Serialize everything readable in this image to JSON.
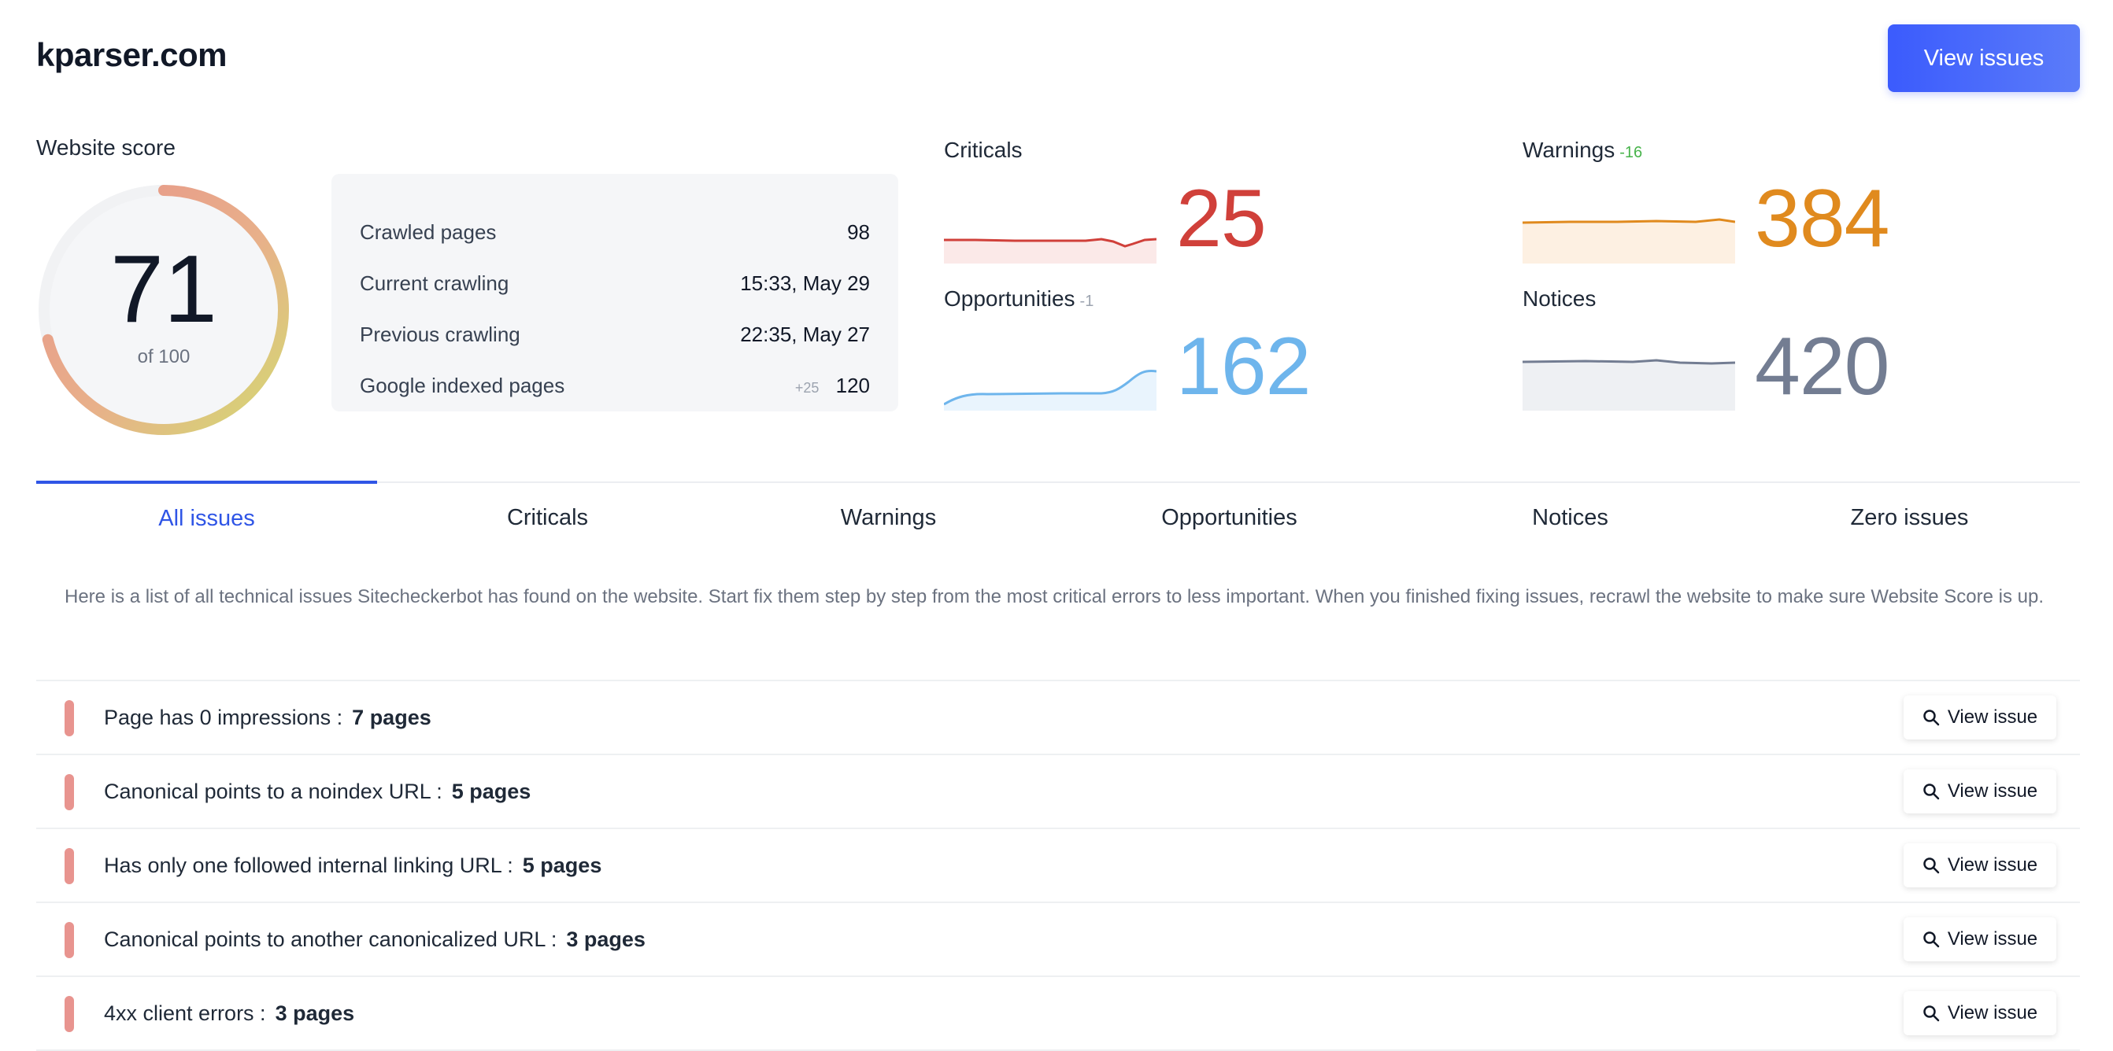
{
  "header": {
    "site": "kparser.com",
    "view_issues_label": "View issues"
  },
  "score": {
    "label": "Website score",
    "value": "71",
    "of": "of 100",
    "fraction": 0.71
  },
  "crawl_info": [
    {
      "label": "Crawled pages",
      "value": "98",
      "delta": ""
    },
    {
      "label": "Current crawling",
      "value": "15:33, May 29",
      "delta": ""
    },
    {
      "label": "Previous crawling",
      "value": "22:35, May 27",
      "delta": ""
    },
    {
      "label": "Google indexed pages",
      "value": "120",
      "delta": "+25"
    }
  ],
  "metrics": {
    "criticals": {
      "title": "Criticals",
      "delta": "",
      "value": "25",
      "color": "#d0403a"
    },
    "warnings": {
      "title": "Warnings",
      "delta": "-16",
      "value": "384",
      "color": "#e08a1e"
    },
    "opportunities": {
      "title": "Opportunities",
      "delta": "-1",
      "value": "162",
      "color": "#6eb5ec"
    },
    "notices": {
      "title": "Notices",
      "delta": "",
      "value": "420",
      "color": "#737d92"
    }
  },
  "tabs": [
    "All issues",
    "Criticals",
    "Warnings",
    "Opportunities",
    "Notices",
    "Zero issues"
  ],
  "active_tab": "All issues",
  "description": "Here is a list of all technical issues Sitecheckerbot has found on the website. Start fix them step by step from the most critical errors to less important. When you finished fixing issues, recrawl the website to make sure Website Score is up.",
  "issues": [
    {
      "text": "Page has 0 impressions :",
      "count": "7 pages",
      "button": "View issue"
    },
    {
      "text": "Canonical points to a noindex URL :",
      "count": "5 pages",
      "button": "View issue"
    },
    {
      "text": "Has only one followed internal linking URL :",
      "count": "5 pages",
      "button": "View issue"
    },
    {
      "text": "Canonical points to another canonicalized URL :",
      "count": "3 pages",
      "button": "View issue"
    },
    {
      "text": "4xx client errors :",
      "count": "3 pages",
      "button": "View issue"
    }
  ]
}
